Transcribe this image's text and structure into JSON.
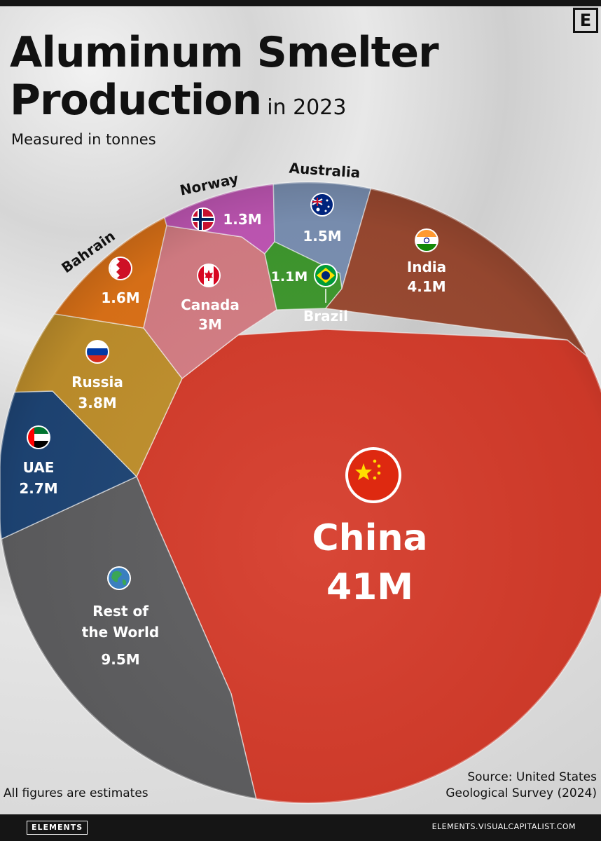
{
  "header": {
    "title_line1": "Aluminum Smelter",
    "title_line2": "Production",
    "title_year": "in 2023",
    "subtitle": "Measured in tonnes",
    "logo_letter": "E"
  },
  "colors": {
    "China": "#d63b2a",
    "Rest of the World": "#5e5e60",
    "UAE": "#1e4576",
    "Russia": "#c2912c",
    "Bahrain": "#e07418",
    "Canada": "#d87f86",
    "Norway": "#c458b8",
    "Australia": "#7d93b6",
    "Brazil": "#3f9a2e",
    "India": "#9c4a31"
  },
  "chart_data": {
    "type": "voronoi-treemap",
    "unit": "tonnes",
    "series": [
      {
        "name": "China",
        "label": "China",
        "value_label": "41M",
        "value": 41000000
      },
      {
        "name": "India",
        "label": "India",
        "value_label": "4.1M",
        "value": 4100000
      },
      {
        "name": "Russia",
        "label": "Russia",
        "value_label": "3.8M",
        "value": 3800000
      },
      {
        "name": "Canada",
        "label": "Canada",
        "value_label": "3M",
        "value": 3000000
      },
      {
        "name": "UAE",
        "label": "UAE",
        "value_label": "2.7M",
        "value": 2700000
      },
      {
        "name": "Bahrain",
        "label": "Bahrain",
        "value_label": "1.6M",
        "value": 1600000
      },
      {
        "name": "Australia",
        "label": "Australia",
        "value_label": "1.5M",
        "value": 1500000
      },
      {
        "name": "Norway",
        "label": "Norway",
        "value_label": "1.3M",
        "value": 1300000
      },
      {
        "name": "Brazil",
        "label": "Brazil",
        "value_label": "1.1M",
        "value": 1100000
      },
      {
        "name": "Rest of the World",
        "label_lines": [
          "Rest of",
          "the World"
        ],
        "value_label": "9.5M",
        "value": 9500000
      }
    ]
  },
  "footer": {
    "note": "All figures are estimates",
    "source_line1": "Source: United States",
    "source_line2": "Geological Survey (2024)",
    "brand": "ELEMENTS",
    "site": "ELEMENTS.VISUALCAPITALIST.COM"
  }
}
